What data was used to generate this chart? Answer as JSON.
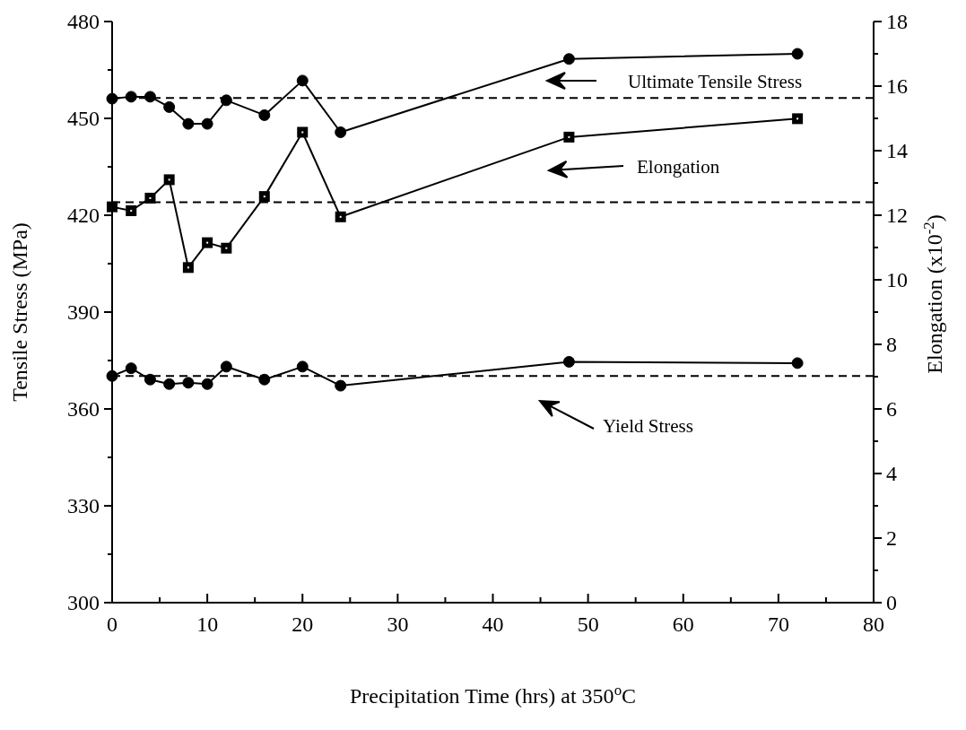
{
  "chart_data": {
    "type": "line",
    "xlabel": "Precipitation Time (hrs) at 350$^{o}$C",
    "ylabel": "Tensile Stress (MPa)",
    "y2label": "Elongation  (x10$^{-2}$)",
    "x": [
      0,
      2,
      4,
      6,
      8,
      10,
      12,
      16,
      20,
      24,
      48,
      72
    ],
    "series": [
      {
        "name": "Ultimate Tensile Stress",
        "color": "#000000",
        "marker": "circle",
        "values": [
          456.1,
          456.7,
          456.7,
          453.5,
          448.3,
          448.3,
          455.6,
          451,
          461.7,
          445.7,
          468.4,
          470
        ]
      },
      {
        "name": "Elongation",
        "color": "#000000",
        "marker": "square",
        "axis": "y2",
        "values": [
          12.26,
          12.14,
          12.53,
          13.1,
          10.38,
          11.15,
          10.98,
          12.58,
          14.57,
          11.95,
          14.42,
          14.99
        ]
      },
      {
        "name": "Yield Stress",
        "color": "#000000",
        "marker": "circle",
        "values": [
          370.2,
          372.6,
          369.1,
          367.7,
          368.1,
          367.7,
          373.1,
          369.1,
          373.1,
          367.2,
          374.6,
          374.2
        ]
      }
    ],
    "ref_lines": [
      {
        "axis": "y",
        "value": 456.3,
        "line_style": "dashed"
      },
      {
        "axis": "y2",
        "value": 12.4,
        "line_style": "dashed"
      },
      {
        "axis": "y",
        "value": 370.2,
        "line_style": "dashed"
      }
    ],
    "xlim": [
      0,
      80
    ],
    "xticks": [
      0,
      {
        "value": 5,
        "label": null
      },
      10,
      {
        "value": 15,
        "label": null
      },
      20,
      {
        "value": 25,
        "label": null
      },
      30,
      {
        "value": 35,
        "label": null
      },
      40,
      {
        "value": 45,
        "label": null
      },
      50,
      {
        "value": 55,
        "label": null
      },
      60,
      {
        "value": 65,
        "label": null
      },
      70,
      {
        "value": 75,
        "label": null
      },
      80
    ],
    "ylim": [
      300,
      480
    ],
    "yticks": [
      300,
      {
        "value": 315,
        "label": null
      },
      330,
      {
        "value": 345,
        "label": null
      },
      360,
      {
        "value": 375,
        "label": null
      },
      390,
      {
        "value": 405,
        "label": null
      },
      420,
      {
        "value": 435,
        "label": null
      },
      450,
      {
        "value": 465,
        "label": null
      },
      480
    ],
    "y2lim": [
      0,
      18
    ],
    "y2ticks": [
      0,
      {
        "value": 1,
        "label": null
      },
      2,
      {
        "value": 3,
        "label": null
      },
      4,
      {
        "value": 5,
        "label": null
      },
      6,
      {
        "value": 7,
        "label": null
      },
      8,
      {
        "value": 9,
        "label": null
      },
      10,
      {
        "value": 11,
        "label": null
      },
      12,
      {
        "value": 13,
        "label": null
      },
      14,
      {
        "value": 15,
        "label": null
      },
      16,
      {
        "value": 17,
        "label": null
      },
      18
    ],
    "legend": "right",
    "line_style": "solid"
  }
}
